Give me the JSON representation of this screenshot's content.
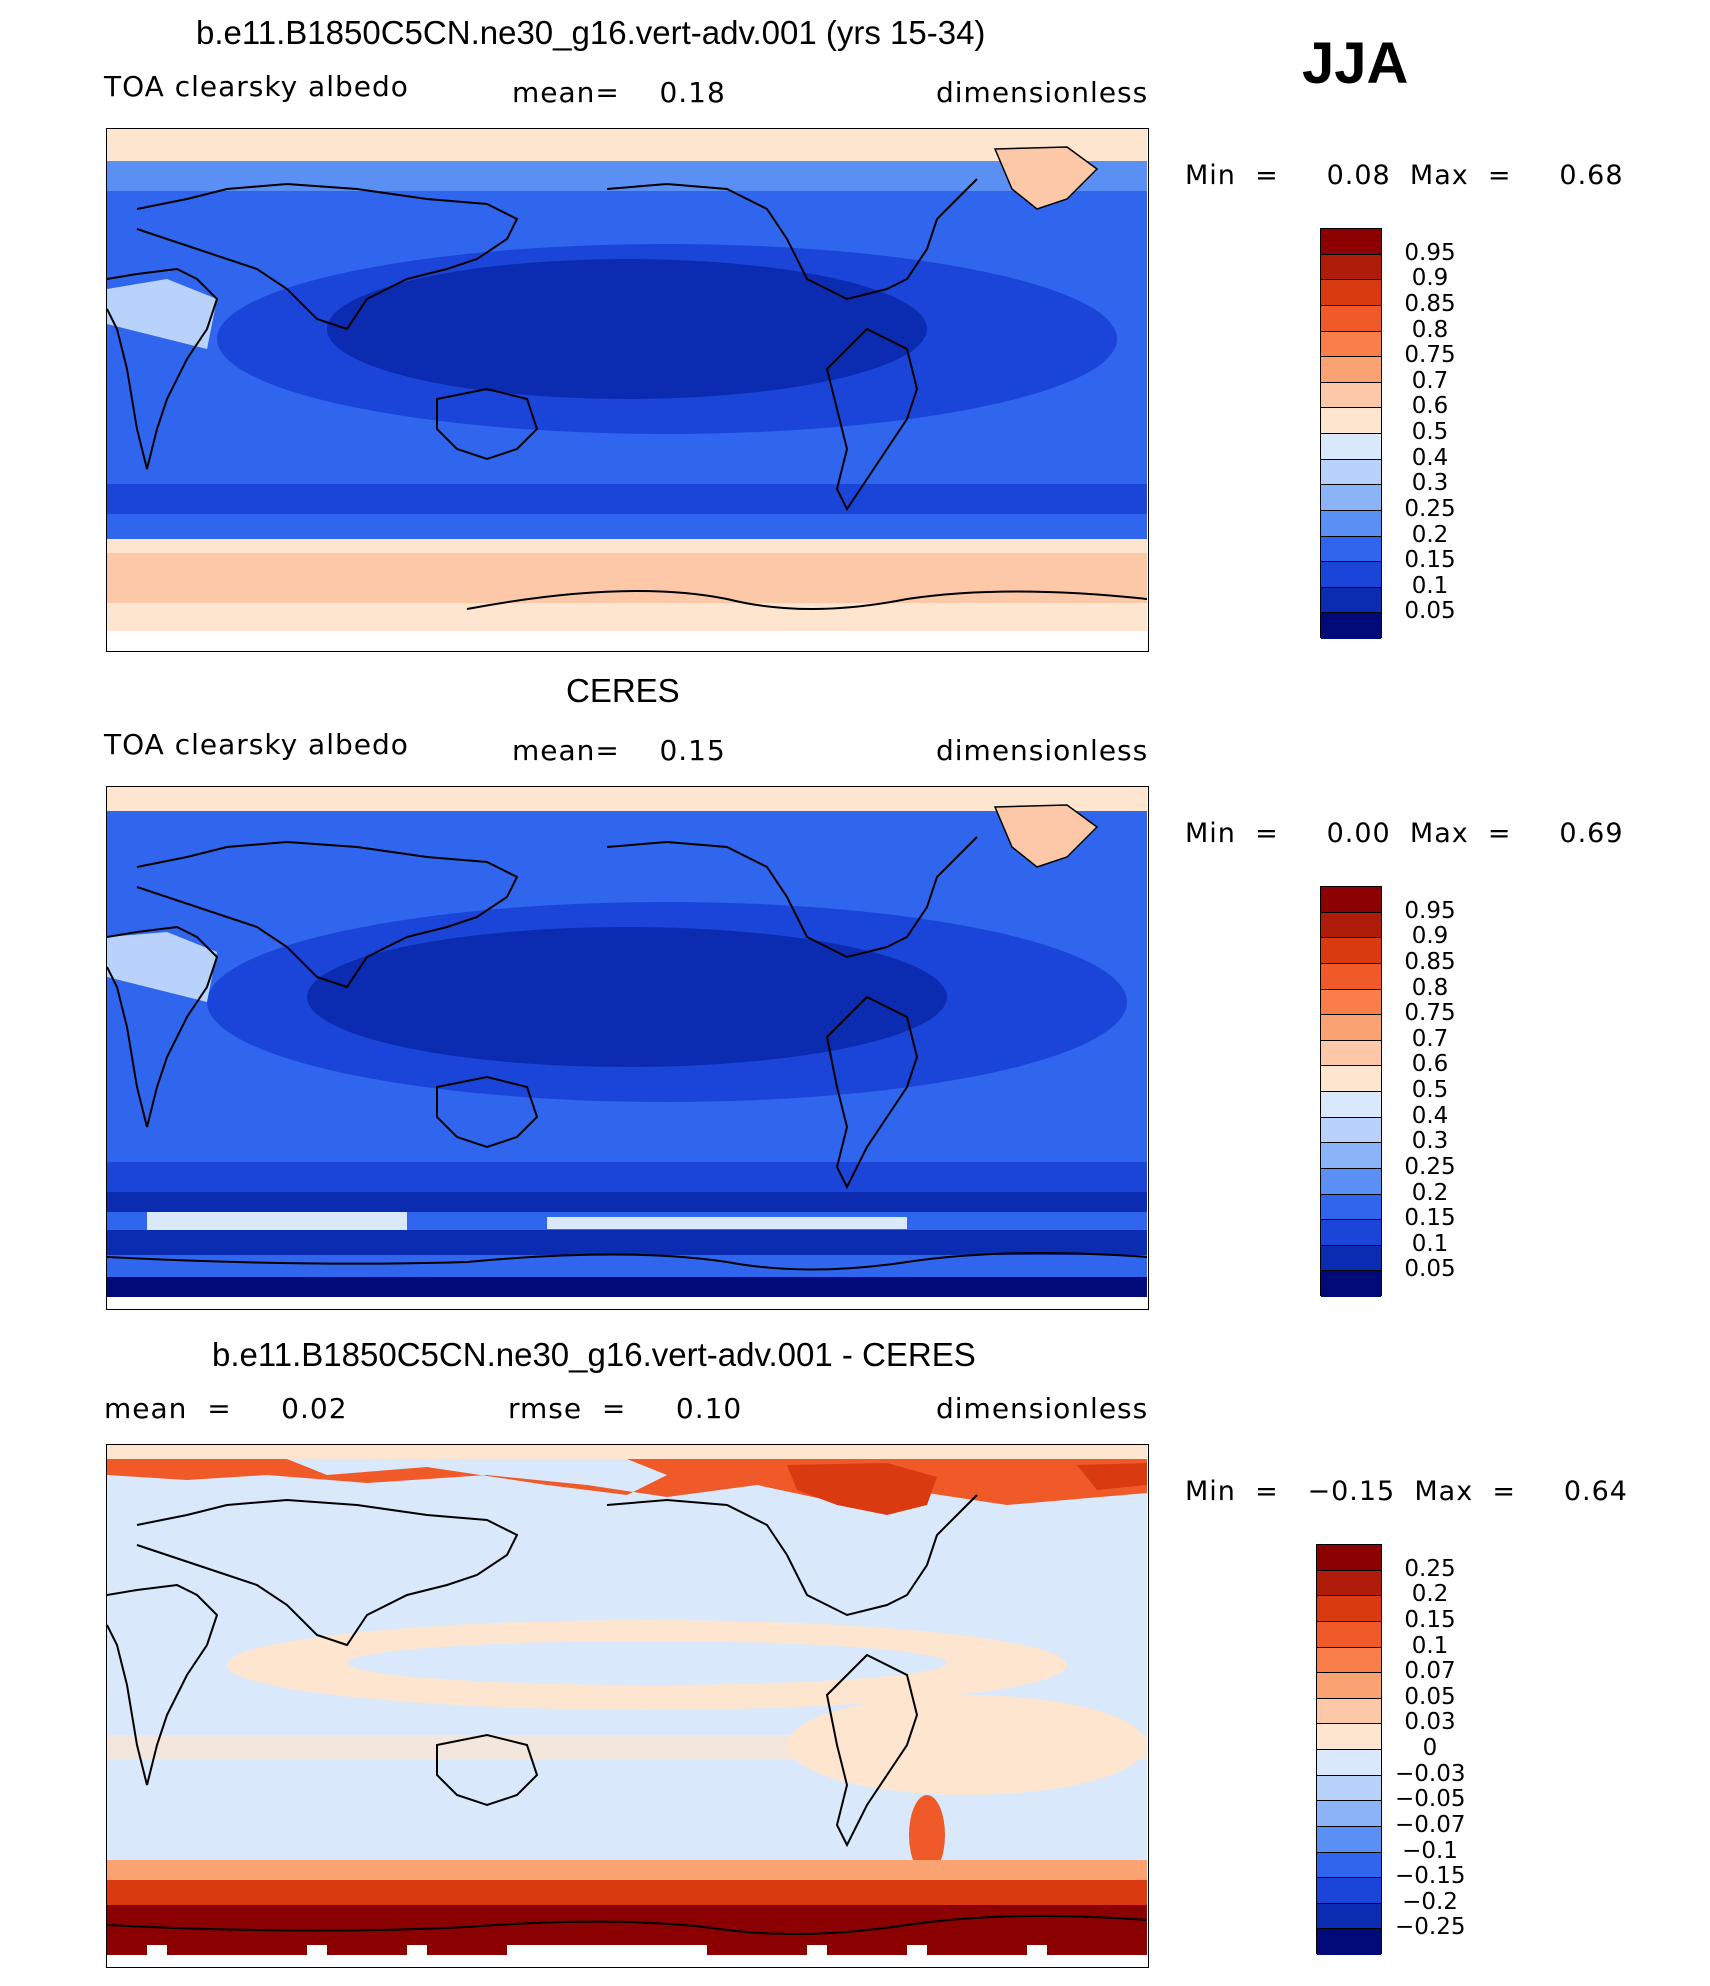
{
  "season": "JJA",
  "panels": [
    {
      "title": "b.e11.B1850C5CN.ne30_g16.vert-adv.001 (yrs 15-34)",
      "left_label": "TOA clearsky albedo",
      "mid_label": "mean=    0.18",
      "units": "dimensionless",
      "minmax": "Min  =     0.08  Max  =     0.68",
      "colorbar": {
        "labels": [
          "0.95",
          "0.9",
          "0.85",
          "0.8",
          "0.75",
          "0.7",
          "0.6",
          "0.5",
          "0.4",
          "0.3",
          "0.25",
          "0.2",
          "0.15",
          "0.1",
          "0.05"
        ],
        "colors": [
          "#8b0000",
          "#b01c0a",
          "#d93a10",
          "#f05a28",
          "#fa7e4a",
          "#fba272",
          "#fdc8a8",
          "#fde5d0",
          "#d9e9fb",
          "#b8d2fb",
          "#8bb3f8",
          "#5a8ff4",
          "#2f66ed",
          "#1a45d8",
          "#0b2bb0",
          "#020a7a"
        ]
      }
    },
    {
      "title": "CERES",
      "left_label": "TOA clearsky albedo",
      "mid_label": "mean=    0.15",
      "units": "dimensionless",
      "minmax": "Min  =     0.00  Max  =     0.69",
      "colorbar": {
        "labels": [
          "0.95",
          "0.9",
          "0.85",
          "0.8",
          "0.75",
          "0.7",
          "0.6",
          "0.5",
          "0.4",
          "0.3",
          "0.25",
          "0.2",
          "0.15",
          "0.1",
          "0.05"
        ],
        "colors": [
          "#8b0000",
          "#b01c0a",
          "#d93a10",
          "#f05a28",
          "#fa7e4a",
          "#fba272",
          "#fdc8a8",
          "#fde5d0",
          "#d9e9fb",
          "#b8d2fb",
          "#8bb3f8",
          "#5a8ff4",
          "#2f66ed",
          "#1a45d8",
          "#0b2bb0",
          "#020a7a"
        ]
      }
    },
    {
      "title": "b.e11.B1850C5CN.ne30_g16.vert-adv.001 - CERES",
      "left_label": "mean  =     0.02",
      "mid_label": "rmse  =     0.10",
      "units": "dimensionless",
      "minmax": "Min  =   −0.15  Max  =     0.64",
      "colorbar": {
        "labels": [
          "0.25",
          "0.2",
          "0.15",
          "0.1",
          "0.07",
          "0.05",
          "0.03",
          "0",
          "−0.03",
          "−0.05",
          "−0.07",
          "−0.1",
          "−0.15",
          "−0.2",
          "−0.25"
        ],
        "colors": [
          "#8b0000",
          "#b01c0a",
          "#d93a10",
          "#f05a28",
          "#fa7e4a",
          "#fba272",
          "#fdc8a8",
          "#fde5d0",
          "#d9e9fb",
          "#b8d2fb",
          "#8bb3f8",
          "#5a8ff4",
          "#2f66ed",
          "#1a45d8",
          "#0b2bb0",
          "#020a7a"
        ]
      }
    }
  ]
}
